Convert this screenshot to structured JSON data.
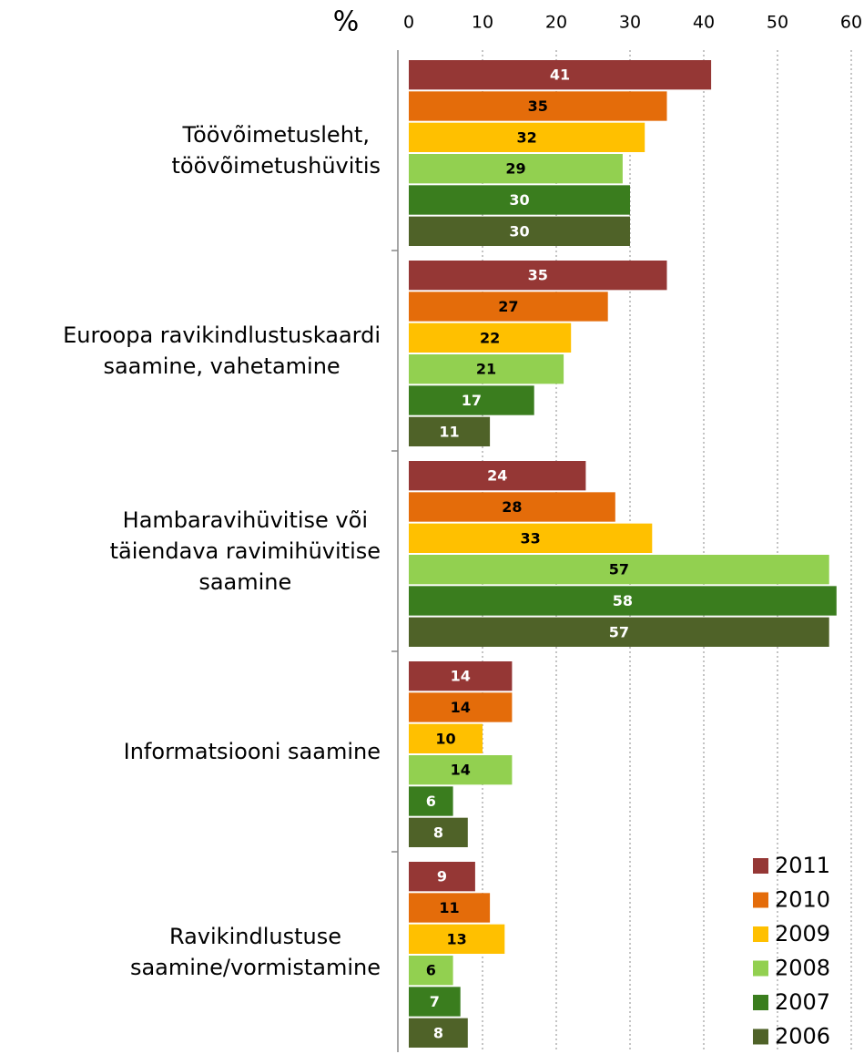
{
  "chart_data": {
    "type": "hbar",
    "y_label": "%",
    "categories": [
      "Töövõimetusleht,\ntöövõimetushüvitis",
      "Euroopa ravikindlustuskaardi\nsaamine, vahetamine",
      "Hambaravihüvitise või\ntäiendava ravimihüvitise\nsaamine",
      "Informatsiooni saamine",
      "Ravikindlustuse\nsaamine/vormistamine"
    ],
    "series": [
      {
        "name": "2011",
        "color": "#953735",
        "label_color": "#ffffff",
        "values": [
          41,
          35,
          24,
          14,
          9
        ]
      },
      {
        "name": "2010",
        "color": "#e46c0a",
        "label_color": "#000000",
        "values": [
          35,
          27,
          28,
          14,
          11
        ]
      },
      {
        "name": "2009",
        "color": "#ffc000",
        "label_color": "#000000",
        "values": [
          32,
          22,
          33,
          10,
          13
        ]
      },
      {
        "name": "2008",
        "color": "#92d050",
        "label_color": "#000000",
        "values": [
          29,
          21,
          57,
          14,
          6
        ]
      },
      {
        "name": "2007",
        "color": "#3a7d1e",
        "label_color": "#ffffff",
        "values": [
          30,
          17,
          58,
          6,
          7
        ]
      },
      {
        "name": "2006",
        "color": "#4f6228",
        "label_color": "#ffffff",
        "values": [
          30,
          11,
          57,
          8,
          8
        ]
      }
    ],
    "xlim": [
      0,
      60
    ],
    "xticks": [
      0,
      10,
      20,
      30,
      40,
      50,
      60
    ],
    "grid": true,
    "legend": "lower right"
  }
}
